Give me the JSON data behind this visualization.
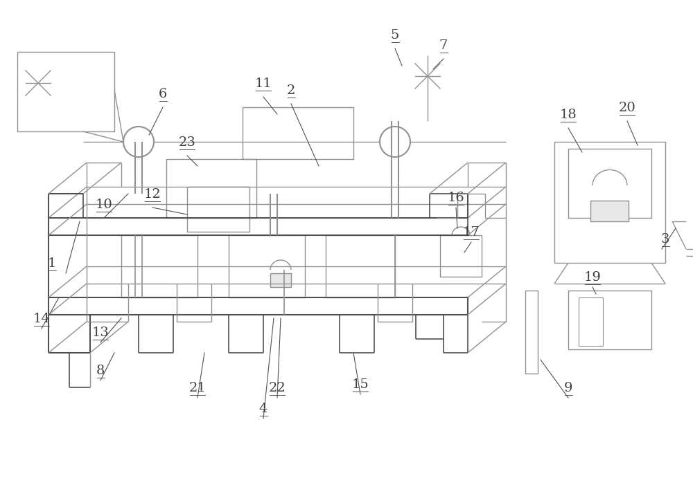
{
  "bg_color": "#ffffff",
  "lc": "#909090",
  "dc": "#505050",
  "label_color": "#404040",
  "fig_width": 10.0,
  "fig_height": 6.91
}
